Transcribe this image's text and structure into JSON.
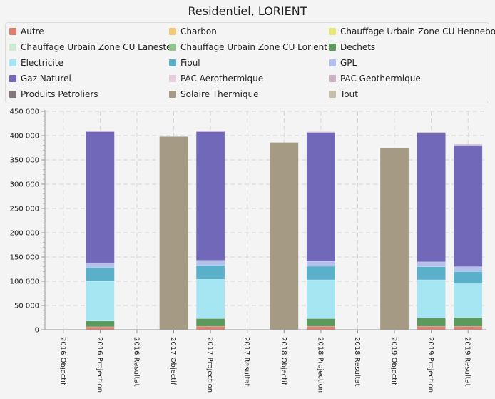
{
  "chart_data": {
    "type": "bar",
    "stacked": true,
    "title": "Residentiel, LORIENT",
    "xlabel": "",
    "ylabel": "",
    "ylim": [
      0,
      450000
    ],
    "yticks": [
      0,
      50000,
      100000,
      150000,
      200000,
      250000,
      300000,
      350000,
      400000,
      450000
    ],
    "ytick_labels": [
      "0",
      "50 000",
      "100 000",
      "150 000",
      "200 000",
      "250 000",
      "300 000",
      "350 000",
      "400 000",
      "450 000"
    ],
    "grid": true,
    "legend_position": "top",
    "categories": [
      "2016 Objectif",
      "2016 Projection",
      "2016 Resultat",
      "2017 Objectif",
      "2017 Projection",
      "2017 Resultat",
      "2018 Objectif",
      "2018 Projection",
      "2018 Resultat",
      "2019 Objectif",
      "2019 Projection",
      "2019 Resultat"
    ],
    "series": [
      {
        "name": "Autre",
        "color": "#e07f6f",
        "values": [
          0,
          6000,
          0,
          0,
          7000,
          0,
          0,
          7000,
          0,
          0,
          7000,
          7000
        ]
      },
      {
        "name": "Charbon",
        "color": "#f2c879",
        "values": [
          0,
          0,
          0,
          0,
          0,
          0,
          0,
          0,
          0,
          0,
          0,
          0
        ]
      },
      {
        "name": "Chauffage Urbain Zone CU Hennebont",
        "color": "#e8e878",
        "values": [
          0,
          0,
          0,
          0,
          0,
          0,
          0,
          0,
          0,
          0,
          0,
          0
        ]
      },
      {
        "name": "Chauffage Urbain Zone CU Lanester",
        "color": "#cdebd3",
        "values": [
          0,
          0,
          0,
          0,
          0,
          0,
          0,
          0,
          0,
          0,
          0,
          0
        ]
      },
      {
        "name": "Chauffage Urbain Zone CU Lorient",
        "color": "#8fc48d",
        "values": [
          0,
          0,
          0,
          0,
          0,
          0,
          0,
          0,
          0,
          0,
          0,
          0
        ]
      },
      {
        "name": "Dechets",
        "color": "#5a9a5d",
        "values": [
          0,
          12000,
          0,
          0,
          16000,
          0,
          0,
          16000,
          0,
          0,
          17000,
          18000
        ]
      },
      {
        "name": "Electricite",
        "color": "#a6e5f2",
        "values": [
          0,
          82000,
          0,
          0,
          81000,
          0,
          0,
          80000,
          0,
          0,
          79000,
          70000
        ]
      },
      {
        "name": "Fioul",
        "color": "#5ab0c9",
        "values": [
          0,
          28000,
          0,
          0,
          29000,
          0,
          0,
          28000,
          0,
          0,
          27000,
          25000
        ]
      },
      {
        "name": "GPL",
        "color": "#b3c0ec",
        "values": [
          0,
          10000,
          0,
          0,
          10000,
          0,
          0,
          10000,
          0,
          0,
          10000,
          10000
        ]
      },
      {
        "name": "Gaz Naturel",
        "color": "#7168b9",
        "values": [
          0,
          270000,
          0,
          0,
          265000,
          0,
          0,
          265000,
          0,
          0,
          265000,
          250000
        ]
      },
      {
        "name": "PAC Aerothermique",
        "color": "#e5cfdc",
        "values": [
          0,
          0,
          0,
          0,
          0,
          0,
          0,
          0,
          0,
          0,
          0,
          0
        ]
      },
      {
        "name": "PAC Geothermique",
        "color": "#c7b1c0",
        "values": [
          0,
          2000,
          0,
          0,
          2000,
          0,
          0,
          2000,
          0,
          0,
          2000,
          2000
        ]
      },
      {
        "name": "Produits Petroliers",
        "color": "#857878",
        "values": [
          0,
          0,
          0,
          0,
          0,
          0,
          0,
          0,
          0,
          0,
          0,
          0
        ]
      },
      {
        "name": "Solaire Thermique",
        "color": "#a59a84",
        "values": [
          0,
          0,
          0,
          398000,
          0,
          0,
          386000,
          0,
          0,
          374000,
          0,
          0
        ]
      },
      {
        "name": "Tout",
        "color": "#c5bfa8",
        "values": [
          0,
          0,
          0,
          0,
          0,
          0,
          0,
          0,
          0,
          0,
          0,
          0
        ]
      }
    ]
  }
}
